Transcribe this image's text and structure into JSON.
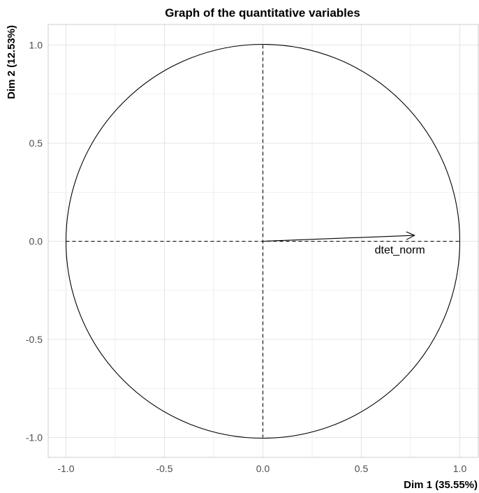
{
  "chart_data": {
    "type": "scatter",
    "title": "Graph of the quantitative variables",
    "xlabel": "Dim 1 (35.55%)",
    "ylabel": "Dim 2 (12.53%)",
    "xlim": [
      -1.1,
      1.1
    ],
    "ylim": [
      -1.1,
      1.1
    ],
    "x_ticks": [
      -1.0,
      -0.5,
      0.0,
      0.5,
      1.0
    ],
    "y_ticks": [
      -1.0,
      -0.5,
      0.0,
      0.5,
      1.0
    ],
    "x_tick_labels": [
      "-1.0",
      "-0.5",
      "0.0",
      "0.5",
      "1.0"
    ],
    "y_tick_labels": [
      "-1.0",
      "-0.5",
      "0.0",
      "0.5",
      "1.0"
    ],
    "grid": true,
    "correlation_circle_radius": 1.0,
    "variables": [
      {
        "name": "dtet_norm",
        "x": 0.77,
        "y": 0.03
      }
    ],
    "colors": {
      "grid": "#e5e5e5",
      "circle": "#000000",
      "arrow": "#000000",
      "panel_border": "#cccccc"
    }
  }
}
